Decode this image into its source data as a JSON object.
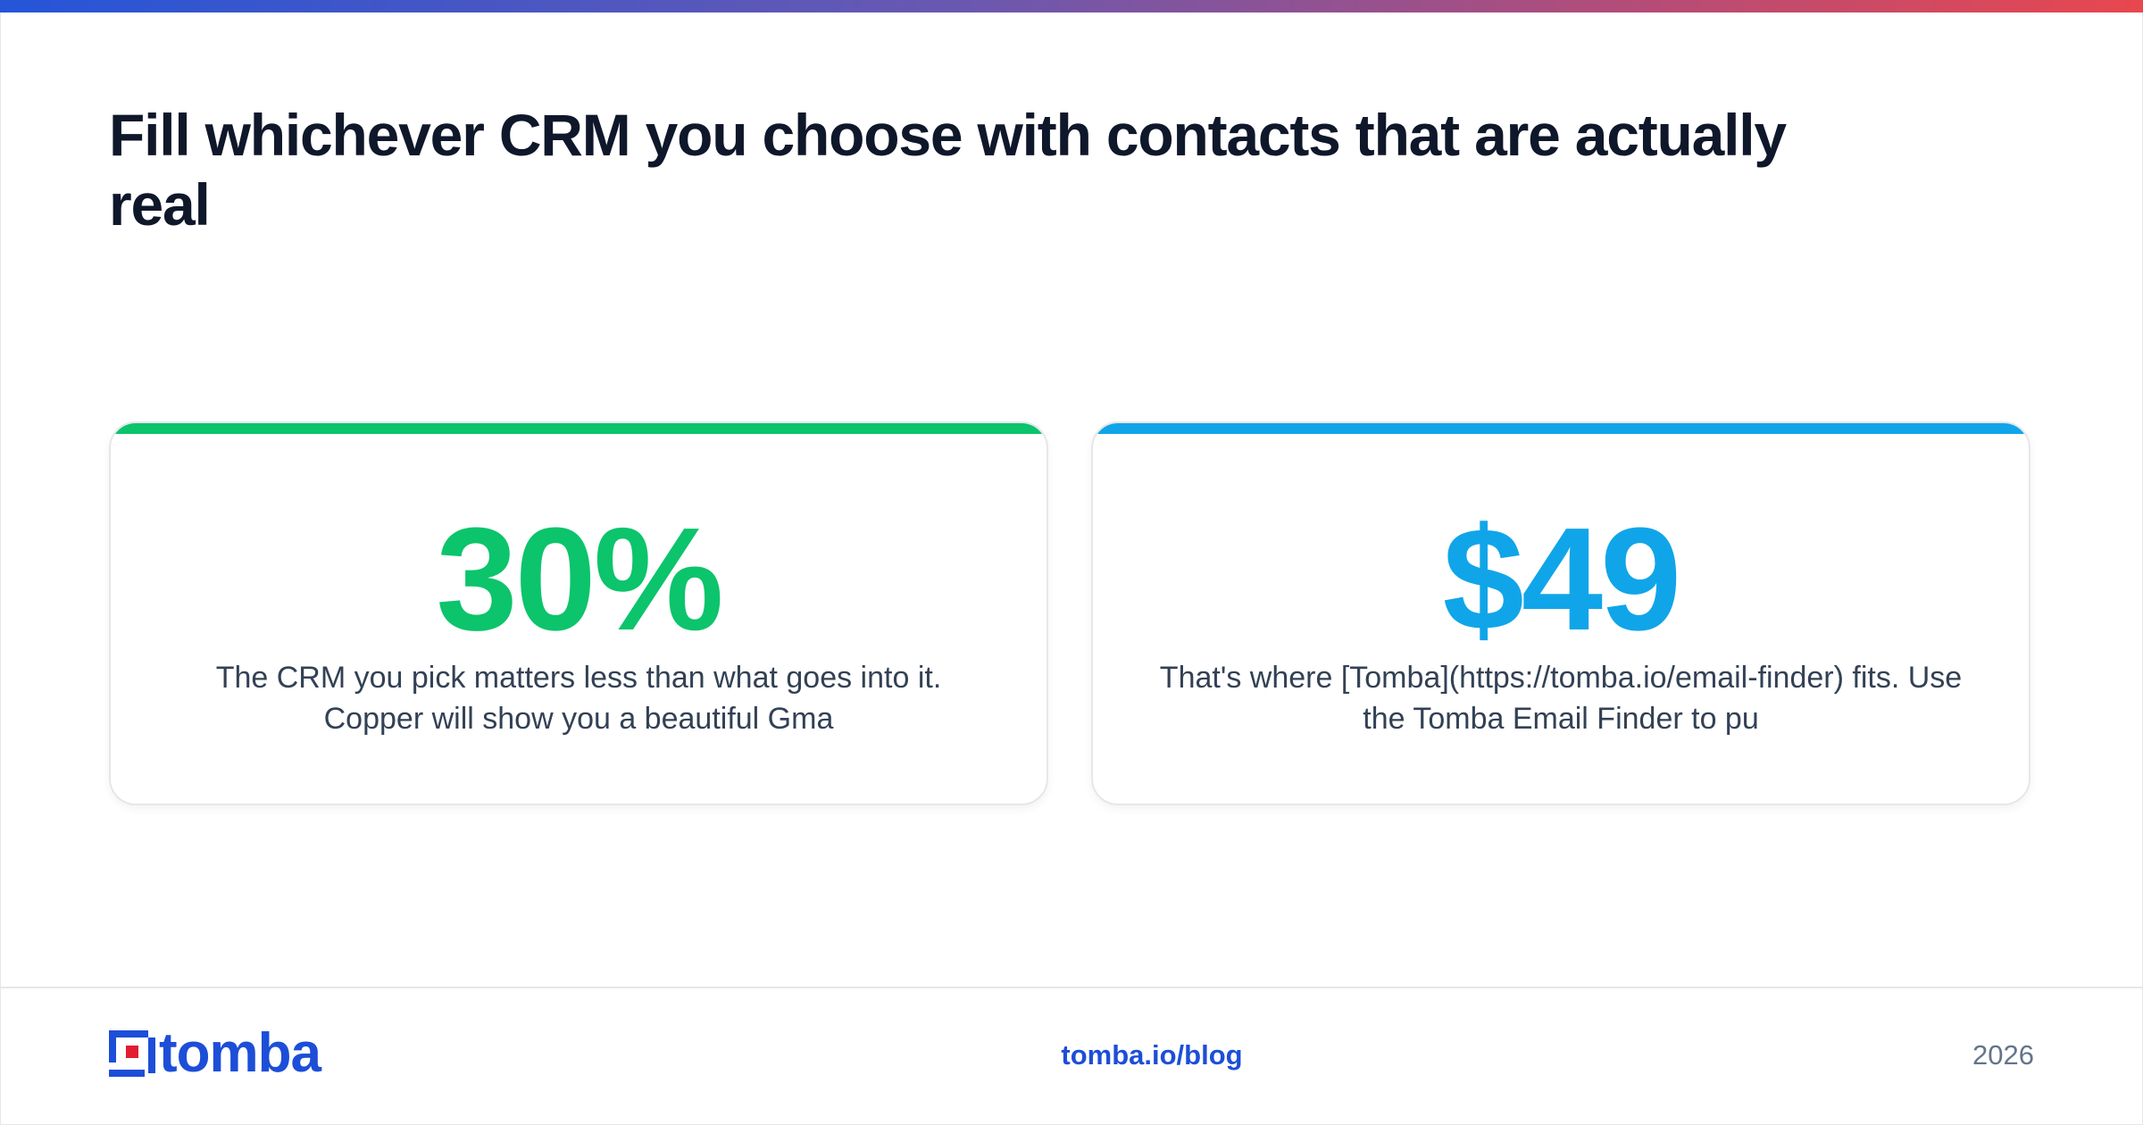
{
  "title": "Fill whichever CRM you choose with contacts that are actually real",
  "colors": {
    "brand": "#1d4ed8",
    "green": "#0bc46b",
    "blue": "#10a5e9",
    "heading": "#0f172a",
    "body": "#334155",
    "muted": "#64748b"
  },
  "cards": [
    {
      "stat": "30%",
      "text": "The CRM you pick matters less than what goes into it. Copper will show you a beautiful Gma"
    },
    {
      "stat": "$49",
      "text": "That's where [Tomba](https://tomba.io/email-finder) fits. Use the Tomba Email Finder to pu"
    }
  ],
  "footer": {
    "logo_text": "tomba",
    "logo_icon": "tomba-logo-icon",
    "site": "tomba.io/blog",
    "year": "2026"
  }
}
